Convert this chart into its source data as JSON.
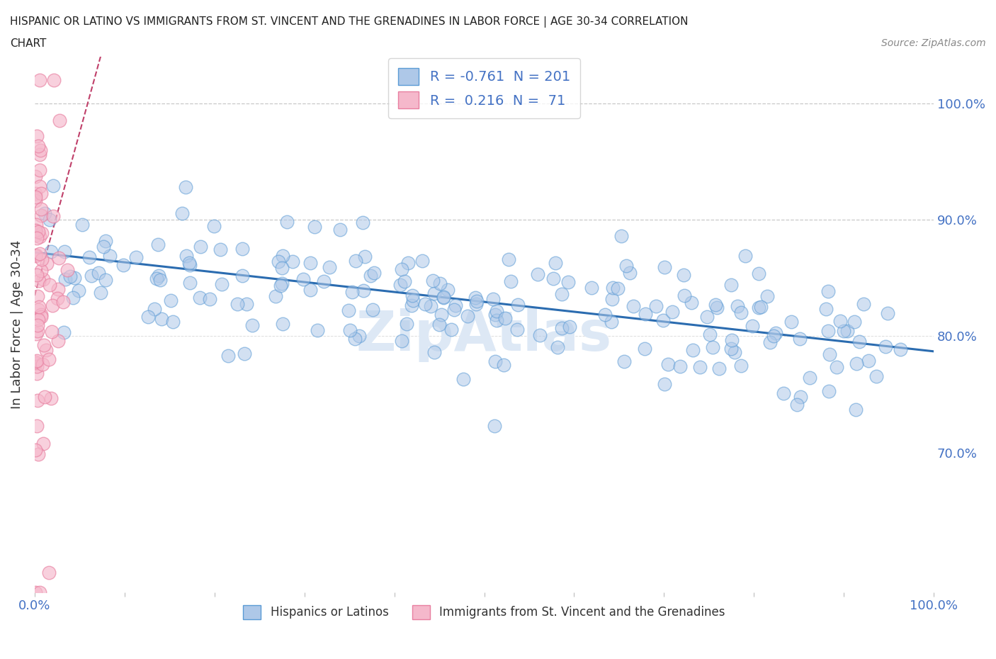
{
  "title_line1": "HISPANIC OR LATINO VS IMMIGRANTS FROM ST. VINCENT AND THE GRENADINES IN LABOR FORCE | AGE 30-34 CORRELATION",
  "title_line2": "CHART",
  "source_text": "Source: ZipAtlas.com",
  "ylabel": "In Labor Force | Age 30-34",
  "x_min": 0.0,
  "x_max": 1.0,
  "y_min": 0.58,
  "y_max": 1.04,
  "y_ticks": [
    0.7,
    0.8,
    0.9,
    1.0
  ],
  "y_tick_labels": [
    "70.0%",
    "80.0%",
    "90.0%",
    "100.0%"
  ],
  "blue_R": -0.761,
  "blue_N": 201,
  "pink_R": 0.216,
  "pink_N": 71,
  "blue_color": "#aec8e8",
  "blue_color_edge": "#5b9bd5",
  "pink_color": "#f5b8cb",
  "pink_color_edge": "#e87fa0",
  "blue_line_color": "#2b6cb0",
  "pink_line_color": "#c0406a",
  "background_color": "#ffffff",
  "grid_color": "#c8c8c8",
  "title_color": "#222222",
  "axis_label_color": "#333333",
  "tick_color": "#4472c4",
  "legend_text_color": "#4472c4",
  "watermark_text": "ZipAtlas",
  "watermark_color": "#dde8f5",
  "blue_trendline_slope": -0.085,
  "blue_trendline_intercept": 0.872,
  "pink_trendline_slope": 2.8,
  "pink_trendline_intercept": 0.835
}
